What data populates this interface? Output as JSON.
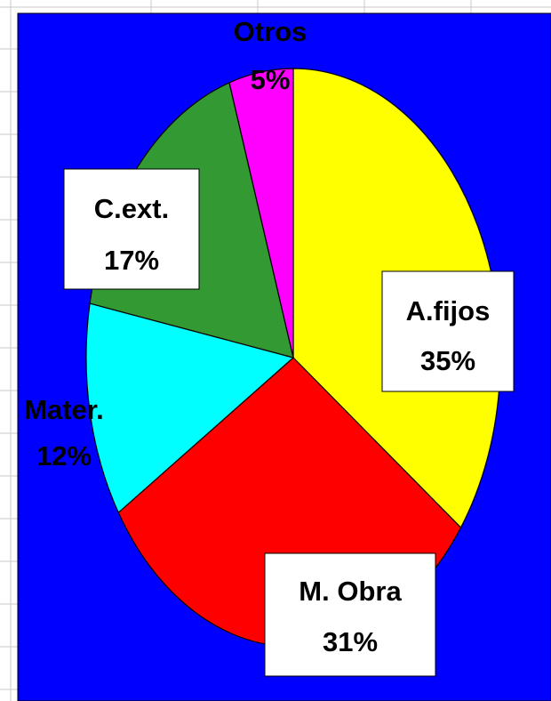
{
  "chart_data": {
    "type": "pie",
    "categories": [
      "A.fijos",
      "M. Obra",
      "Mater.",
      "C.ext.",
      "Otros"
    ],
    "values": [
      35,
      31,
      12,
      17,
      5
    ],
    "value_labels": [
      "35%",
      "31%",
      "12%",
      "17%",
      "5%"
    ],
    "colors": [
      "#ffff00",
      "#ff0000",
      "#00ffff",
      "#339933",
      "#ff00ff"
    ],
    "background": "#0000ff"
  }
}
